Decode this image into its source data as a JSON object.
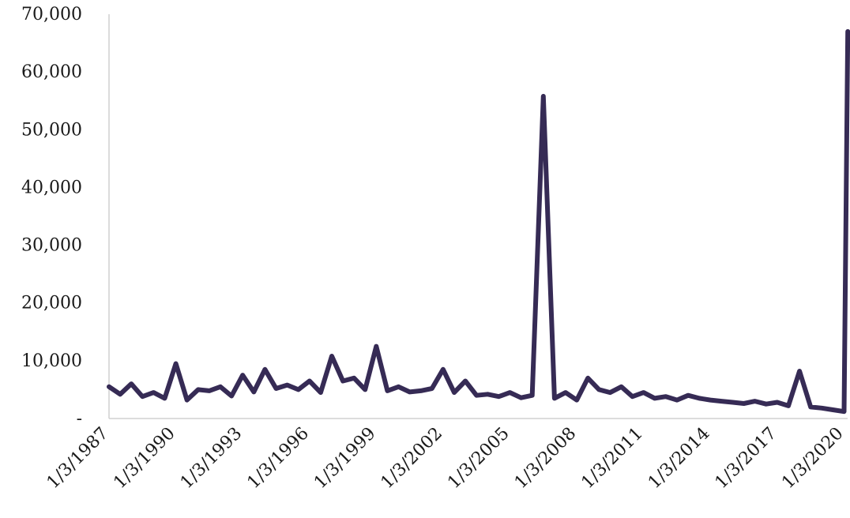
{
  "chart_data": {
    "type": "line",
    "title": "",
    "xlabel": "",
    "ylabel": "",
    "ylim": [
      0,
      70000
    ],
    "y_ticks": [
      {
        "value": 0,
        "label": "-"
      },
      {
        "value": 10000,
        "label": "10,000"
      },
      {
        "value": 20000,
        "label": "20,000"
      },
      {
        "value": 30000,
        "label": "30,000"
      },
      {
        "value": 40000,
        "label": "40,000"
      },
      {
        "value": 50000,
        "label": "50,000"
      },
      {
        "value": 60000,
        "label": "60,000"
      },
      {
        "value": 70000,
        "label": "70,000"
      }
    ],
    "x_ticks": [
      "1/3/1987",
      "1/3/1990",
      "1/3/1993",
      "1/3/1996",
      "1/3/1999",
      "1/3/2002",
      "1/3/2005",
      "1/3/2008",
      "1/3/2011",
      "1/3/2014",
      "1/3/2017",
      "1/3/2020"
    ],
    "grid": false,
    "line_color": "#362b55",
    "series": [
      {
        "name": "",
        "x": [
          "1/3/1987",
          "7/3/1987",
          "1/3/1988",
          "7/3/1988",
          "1/3/1989",
          "7/3/1989",
          "1/3/1990",
          "7/3/1990",
          "1/3/1991",
          "7/3/1991",
          "1/3/1992",
          "7/3/1992",
          "1/3/1993",
          "7/3/1993",
          "1/3/1994",
          "7/3/1994",
          "1/3/1995",
          "7/3/1995",
          "1/3/1996",
          "7/3/1996",
          "1/3/1997",
          "7/3/1997",
          "1/3/1998",
          "7/3/1998",
          "1/3/1999",
          "7/3/1999",
          "1/3/2000",
          "7/3/2000",
          "1/3/2001",
          "7/3/2001",
          "1/3/2002",
          "7/3/2002",
          "1/3/2003",
          "7/3/2003",
          "1/3/2004",
          "7/3/2004",
          "1/3/2005",
          "7/3/2005",
          "1/3/2006",
          "7/3/2006",
          "1/3/2007",
          "7/3/2007",
          "1/3/2008",
          "7/3/2008",
          "1/3/2009",
          "7/3/2009",
          "1/3/2010",
          "7/3/2010",
          "1/3/2011",
          "7/3/2011",
          "1/3/2012",
          "7/3/2012",
          "1/3/2013",
          "7/3/2013",
          "1/3/2014",
          "7/3/2014",
          "1/3/2015",
          "7/3/2015",
          "1/3/2016",
          "7/3/2016",
          "1/3/2017",
          "7/3/2017",
          "1/3/2018",
          "7/3/2018",
          "1/3/2019",
          "7/3/2019",
          "1/3/2020",
          "3/3/2020"
        ],
        "values": [
          5500,
          4200,
          6000,
          3800,
          4500,
          3500,
          9500,
          3200,
          5000,
          4800,
          5500,
          3900,
          7500,
          4600,
          8500,
          5200,
          5800,
          5000,
          6500,
          4500,
          10800,
          6500,
          7000,
          5000,
          12500,
          4800,
          5500,
          4600,
          4800,
          5200,
          8500,
          4500,
          6500,
          4000,
          4200,
          3800,
          4500,
          3600,
          4000,
          55800,
          3500,
          4500,
          3200,
          7000,
          5000,
          4500,
          5500,
          3800,
          4500,
          3500,
          3800,
          3200,
          4000,
          3500,
          3200,
          3000,
          2800,
          2600,
          3000,
          2500,
          2800,
          2200,
          8200,
          2000,
          1800,
          1500,
          1200,
          67000
        ]
      }
    ]
  }
}
